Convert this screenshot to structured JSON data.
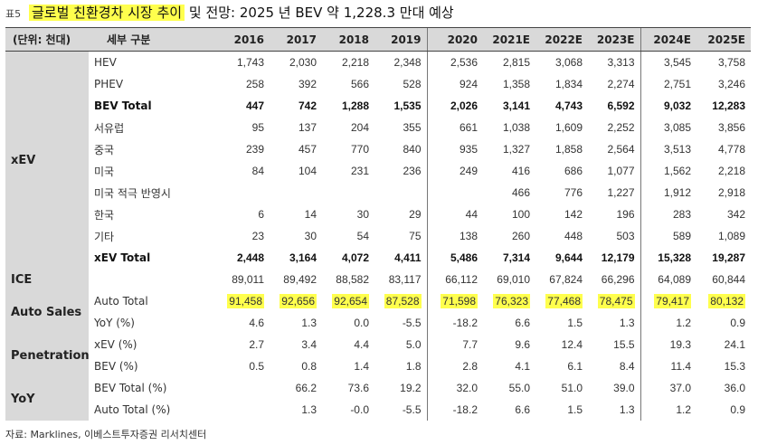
{
  "title": {
    "label": "표5",
    "highlight": "글로벌 친환경차 시장 추이",
    "rest": " 및 전망: 2025 년 BEV 약 1,228.3 만대 예상"
  },
  "header": {
    "unit": "(단위: 천대)",
    "category": "세부 구분",
    "years": [
      "2016",
      "2017",
      "2018",
      "2019",
      "2020",
      "2021E",
      "2022E",
      "2023E",
      "2024E",
      "2025E"
    ]
  },
  "groups": [
    {
      "name": "xEV",
      "rows": [
        {
          "label": "HEV",
          "values": [
            "1,743",
            "2,030",
            "2,218",
            "2,348",
            "2,536",
            "2,815",
            "3,068",
            "3,313",
            "3,545",
            "3,758"
          ]
        },
        {
          "label": "PHEV",
          "values": [
            "258",
            "392",
            "566",
            "528",
            "924",
            "1,358",
            "1,834",
            "2,274",
            "2,751",
            "3,246"
          ]
        },
        {
          "label": "BEV Total",
          "bold": true,
          "values": [
            "447",
            "742",
            "1,288",
            "1,535",
            "2,026",
            "3,141",
            "4,743",
            "6,592",
            "9,032",
            "12,283"
          ]
        },
        {
          "label": "서유럽",
          "sub": true,
          "values": [
            "95",
            "137",
            "204",
            "355",
            "661",
            "1,038",
            "1,609",
            "2,252",
            "3,085",
            "3,856"
          ]
        },
        {
          "label": "중국",
          "values": [
            "239",
            "457",
            "770",
            "840",
            "935",
            "1,327",
            "1,858",
            "2,564",
            "3,513",
            "4,778"
          ]
        },
        {
          "label": "미국",
          "values": [
            "84",
            "104",
            "231",
            "236",
            "249",
            "416",
            "686",
            "1,077",
            "1,562",
            "2,218"
          ]
        },
        {
          "label": "미국 적극 반영시",
          "sub": true,
          "values": [
            "",
            "",
            "",
            "",
            "",
            "466",
            "776",
            "1,227",
            "1,912",
            "2,918"
          ]
        },
        {
          "label": "한국",
          "values": [
            "6",
            "14",
            "30",
            "29",
            "44",
            "100",
            "142",
            "196",
            "283",
            "342"
          ]
        },
        {
          "label": "기타",
          "values": [
            "23",
            "30",
            "54",
            "75",
            "138",
            "260",
            "448",
            "503",
            "589",
            "1,089"
          ]
        },
        {
          "label": "xEV Total",
          "bold": true,
          "sub": true,
          "values": [
            "2,448",
            "3,164",
            "4,072",
            "4,411",
            "5,486",
            "7,314",
            "9,644",
            "12,179",
            "15,328",
            "19,287"
          ]
        }
      ]
    },
    {
      "name": "ICE",
      "rows": [
        {
          "label": "",
          "values": [
            "89,011",
            "89,492",
            "88,582",
            "83,117",
            "66,112",
            "69,010",
            "67,824",
            "66,296",
            "64,089",
            "60,844"
          ]
        }
      ]
    },
    {
      "name": "Auto Sales",
      "rows": [
        {
          "label": "Auto Total",
          "highlight": true,
          "values": [
            "91,458",
            "92,656",
            "92,654",
            "87,528",
            "71,598",
            "76,323",
            "77,468",
            "78,475",
            "79,417",
            "80,132"
          ]
        },
        {
          "label": "YoY (%)",
          "values": [
            "4.6",
            "1.3",
            "0.0",
            "-5.5",
            "-18.2",
            "6.6",
            "1.5",
            "1.3",
            "1.2",
            "0.9"
          ]
        }
      ]
    },
    {
      "name": "Penetration",
      "rows": [
        {
          "label": "xEV (%)",
          "values": [
            "2.7",
            "3.4",
            "4.4",
            "5.0",
            "7.7",
            "9.6",
            "12.4",
            "15.5",
            "19.3",
            "24.1"
          ]
        },
        {
          "label": "BEV (%)",
          "values": [
            "0.5",
            "0.8",
            "1.4",
            "1.8",
            "2.8",
            "4.1",
            "6.1",
            "8.4",
            "11.4",
            "15.3"
          ]
        }
      ]
    },
    {
      "name": "YoY",
      "rows": [
        {
          "label": "BEV Total (%)",
          "values": [
            "",
            "66.2",
            "73.6",
            "19.2",
            "32.0",
            "55.0",
            "51.0",
            "39.0",
            "37.0",
            "36.0"
          ]
        },
        {
          "label": "Auto Total (%)",
          "values": [
            "",
            "1.3",
            "-0.0",
            "-5.5",
            "-18.2",
            "6.6",
            "1.5",
            "1.3",
            "1.2",
            "0.9"
          ]
        }
      ]
    }
  ],
  "source": "자료: Marklines, 이베스트투자증권 리서치센터"
}
